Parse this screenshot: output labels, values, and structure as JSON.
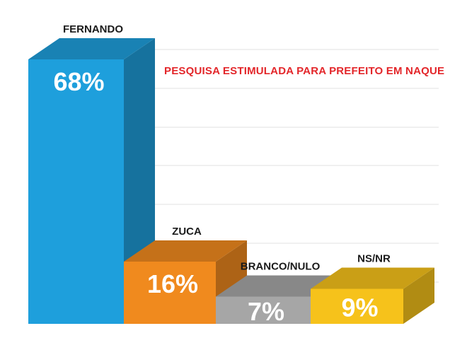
{
  "chart_data": {
    "type": "bar",
    "title": "PESQUISA ESTIMULADA PARA PREFEITO EM NAQUE",
    "xlabel": "",
    "ylabel": "",
    "ylim": [
      0,
      70
    ],
    "grid": true,
    "legend": "none",
    "categories": [
      "FERNANDO",
      "ZUCA",
      "BRANCO/NULO",
      "NS/NR"
    ],
    "values": [
      68,
      16,
      7,
      9
    ],
    "value_labels": [
      "68%",
      "16%",
      "7%",
      "9%"
    ],
    "colors": {
      "FERNANDO": "#1e9fdc",
      "ZUCA": "#f08a1e",
      "BRANCO/NULO": "#a6a6a6",
      "NS/NR": "#f6c21b"
    },
    "title_color": "#e3262a"
  }
}
